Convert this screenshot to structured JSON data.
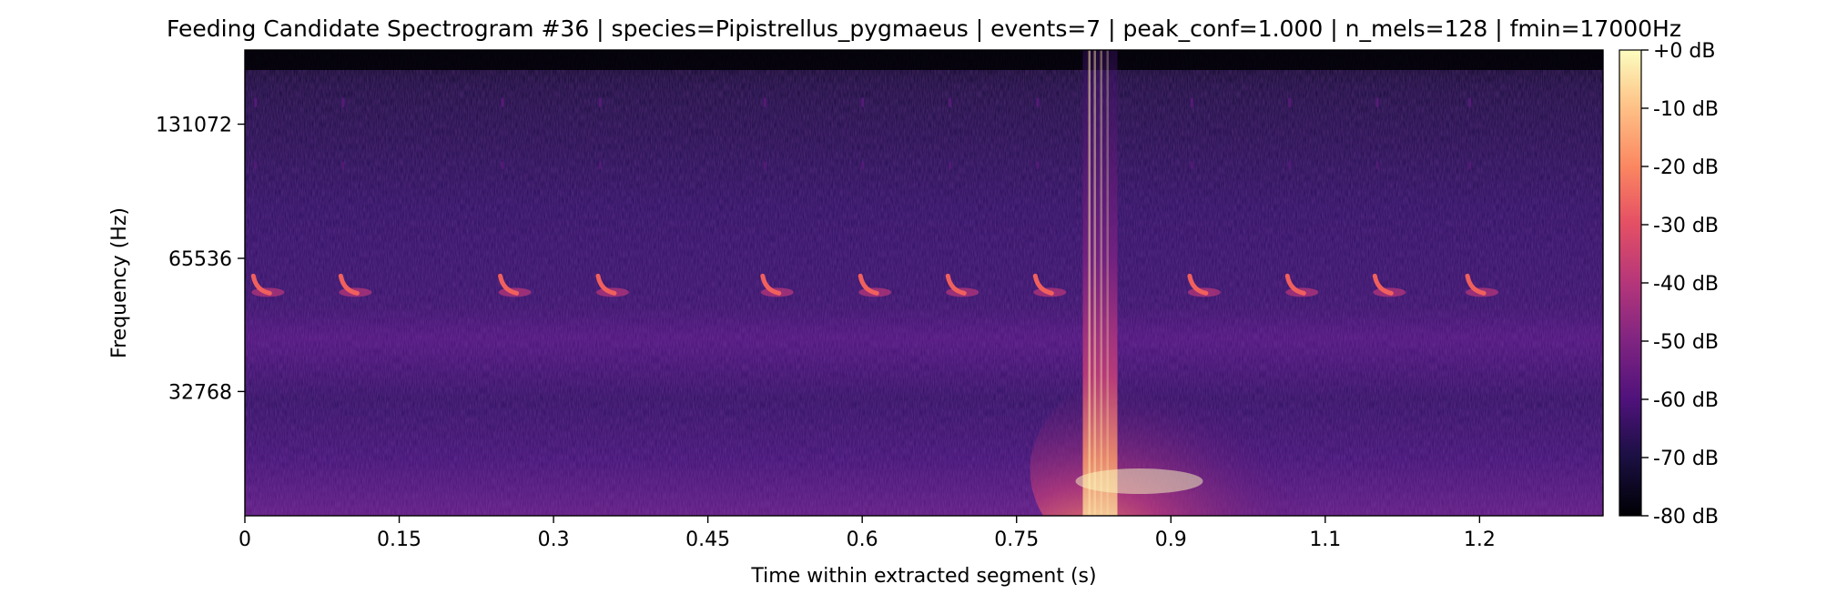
{
  "chart_data": {
    "type": "heatmap",
    "title": "Feeding Candidate Spectrogram #36 | species=Pipistrellus_pygmaeus | events=7 | peak_conf=1.000 | n_mels=128 | fmin=17000Hz",
    "xlabel": "Time within extracted segment (s)",
    "ylabel": "Frequency (Hz)",
    "xlim": [
      0,
      1.32
    ],
    "y_scale": "mel",
    "x_ticks": [
      {
        "value": 0,
        "label": "0"
      },
      {
        "value": 0.15,
        "label": "0.15"
      },
      {
        "value": 0.3,
        "label": "0.3"
      },
      {
        "value": 0.45,
        "label": "0.45"
      },
      {
        "value": 0.6,
        "label": "0.6"
      },
      {
        "value": 0.75,
        "label": "0.75"
      },
      {
        "value": 0.9,
        "label": "0.9"
      },
      {
        "value": 1.05,
        "label": "1.1"
      },
      {
        "value": 1.2,
        "label": "1.2"
      }
    ],
    "y_ticks": [
      {
        "value": 32768,
        "label": "32768"
      },
      {
        "value": 65536,
        "label": "65536"
      },
      {
        "value": 131072,
        "label": "131072"
      }
    ],
    "colorbar": {
      "colormap": "magma",
      "range_db": [
        -80,
        0
      ],
      "ticks": [
        {
          "value": 0,
          "label": "+0 dB"
        },
        {
          "value": -10,
          "label": "-10 dB"
        },
        {
          "value": -20,
          "label": "-20 dB"
        },
        {
          "value": -30,
          "label": "-30 dB"
        },
        {
          "value": -40,
          "label": "-40 dB"
        },
        {
          "value": -50,
          "label": "-50 dB"
        },
        {
          "value": -60,
          "label": "-60 dB"
        },
        {
          "value": -70,
          "label": "-70 dB"
        },
        {
          "value": -80,
          "label": "-80 dB"
        }
      ]
    },
    "events": {
      "call_times_s": [
        0.01,
        0.095,
        0.25,
        0.345,
        0.505,
        0.6,
        0.685,
        0.77,
        0.92,
        1.015,
        1.1,
        1.19
      ],
      "call_frequency_hz": 56000,
      "broadband_burst_time_s": 0.825
    },
    "colors": {
      "background": "#000004",
      "call": "#f0605d",
      "burst": "#fcfdbf"
    }
  }
}
